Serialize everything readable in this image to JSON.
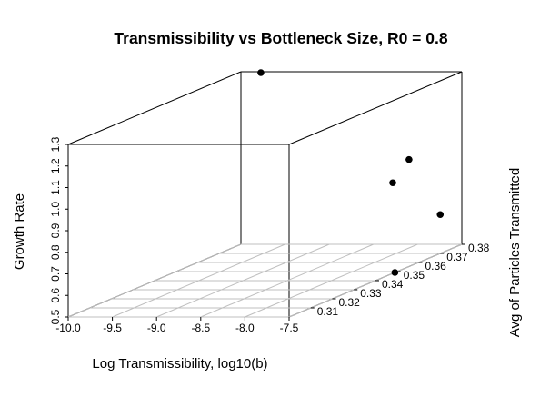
{
  "chart_data": {
    "type": "scatter",
    "title": "Transmissibility vs Bottleneck Size, R0 = 0.8",
    "xlabel": "Log Transmissibility, log10(b)",
    "ylabel": "Avg of Particles Transmitted",
    "zlabel": "Growth Rate",
    "xlim": [
      -10.0,
      -7.5
    ],
    "ylim": [
      0.3,
      0.38
    ],
    "zlim": [
      0.5,
      1.3
    ],
    "x_ticks": [
      "-10.0",
      "-9.5",
      "-9.0",
      "-8.5",
      "-8.0",
      "-7.5"
    ],
    "y_ticks": [
      "0.31",
      "0.32",
      "0.33",
      "0.34",
      "0.35",
      "0.36",
      "0.37",
      "0.38"
    ],
    "z_ticks": [
      "0.5",
      "0.6",
      "0.7",
      "0.8",
      "0.9",
      "1.0",
      "1.1",
      "1.2",
      "1.3"
    ],
    "grid": true,
    "points": [
      {
        "x": -9.75,
        "y": 0.379,
        "z": 1.3
      },
      {
        "x": -8.0,
        "y": 0.376,
        "z": 0.91
      },
      {
        "x": -7.5,
        "y": 0.349,
        "z": 0.5
      },
      {
        "x": -7.5,
        "y": 0.37,
        "z": 0.68
      },
      {
        "x": -7.5,
        "y": 0.348,
        "z": 0.92
      }
    ]
  }
}
